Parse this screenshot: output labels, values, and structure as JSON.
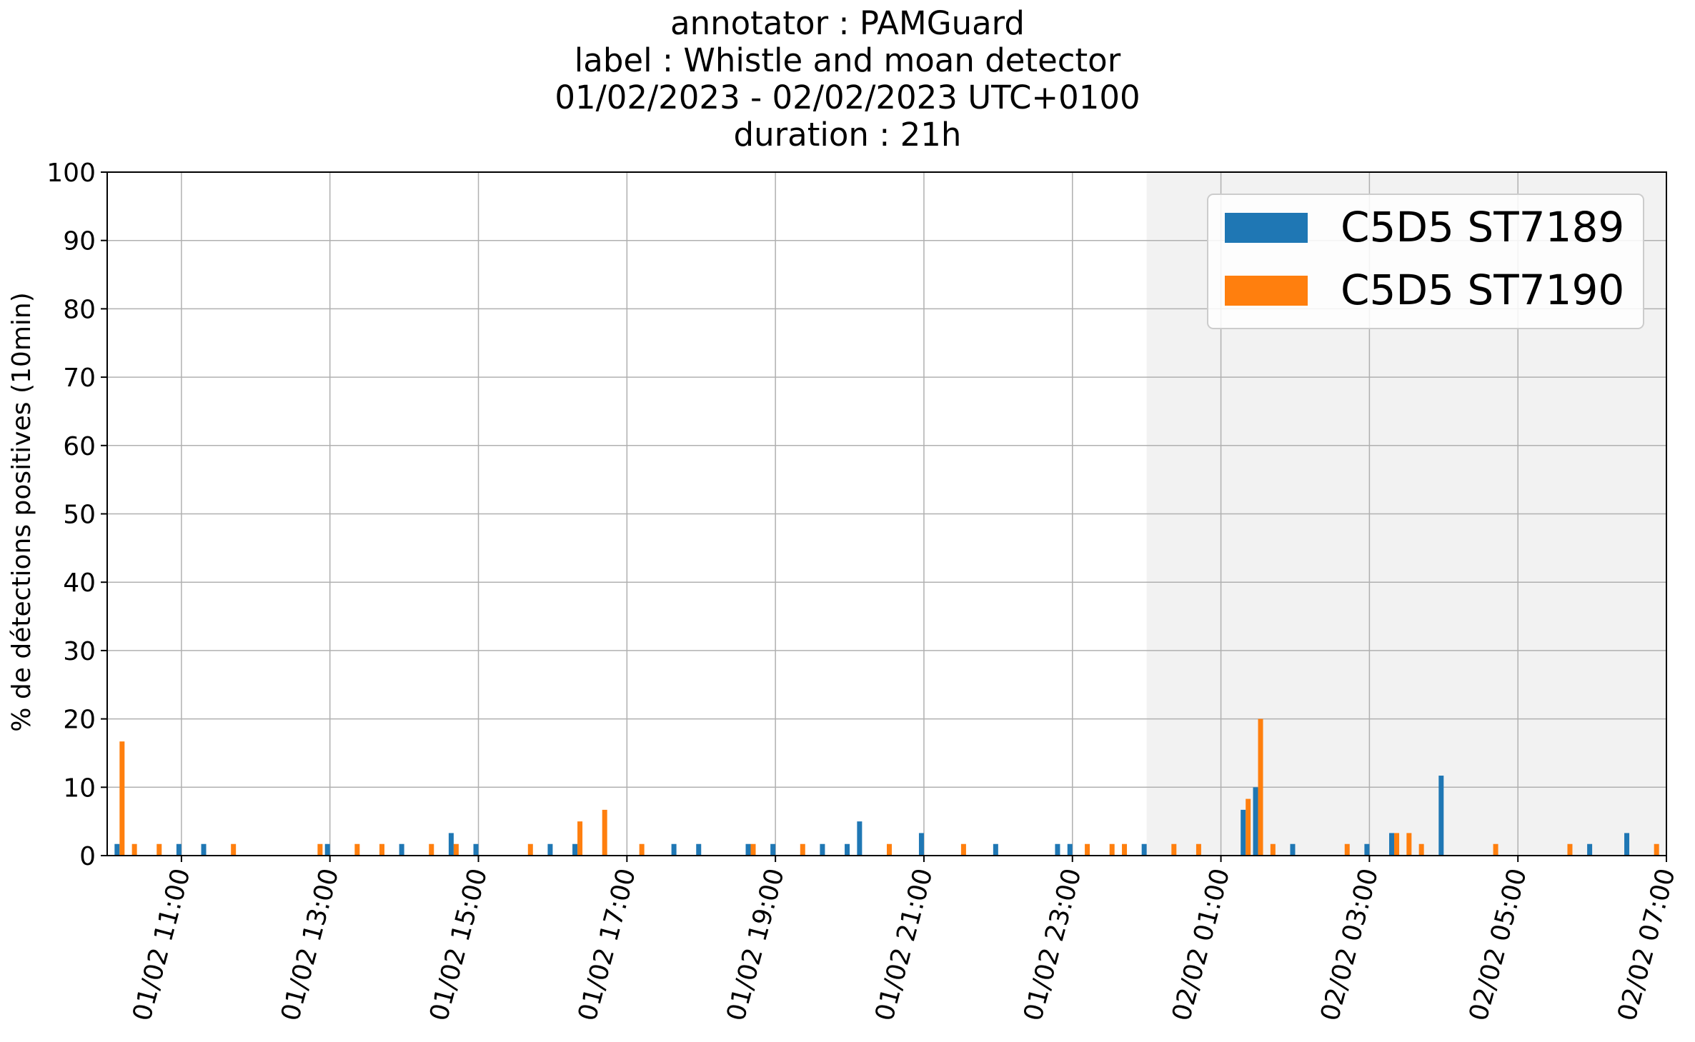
{
  "chart_data": {
    "type": "bar",
    "title_lines": [
      "annotator : PAMGuard",
      "label : Whistle and moan detector",
      "01/02/2023 - 02/02/2023 UTC+0100",
      "duration : 21h"
    ],
    "xlabel": "",
    "ylabel": "% de détections positives (10min)",
    "ylim": [
      0,
      100
    ],
    "yticks": [
      0,
      10,
      20,
      30,
      40,
      50,
      60,
      70,
      80,
      90,
      100
    ],
    "xlim": [
      "2023-02-01 10:00",
      "2023-02-02 07:00"
    ],
    "xticks": [
      {
        "time": "2023-02-01 11:00",
        "label": "01/02 11:00"
      },
      {
        "time": "2023-02-01 13:00",
        "label": "01/02 13:00"
      },
      {
        "time": "2023-02-01 15:00",
        "label": "01/02 15:00"
      },
      {
        "time": "2023-02-01 17:00",
        "label": "01/02 17:00"
      },
      {
        "time": "2023-02-01 19:00",
        "label": "01/02 19:00"
      },
      {
        "time": "2023-02-01 21:00",
        "label": "01/02 21:00"
      },
      {
        "time": "2023-02-01 23:00",
        "label": "01/02 23:00"
      },
      {
        "time": "2023-02-02 01:00",
        "label": "02/02 01:00"
      },
      {
        "time": "2023-02-02 03:00",
        "label": "02/02 03:00"
      },
      {
        "time": "2023-02-02 05:00",
        "label": "02/02 05:00"
      },
      {
        "time": "2023-02-02 07:00",
        "label": "02/02 07:00"
      }
    ],
    "shaded_region": {
      "start": "2023-02-02 00:00",
      "end": "2023-02-02 07:00",
      "color": "#f2f2f2"
    },
    "grid": true,
    "legend_position": "top-right",
    "series": [
      {
        "name": "C5D5 ST7189",
        "color": "#1f77b4",
        "points": [
          {
            "time": "2023-02-01 10:10",
            "value": 1.7
          },
          {
            "time": "2023-02-01 11:00",
            "value": 1.7
          },
          {
            "time": "2023-02-01 11:20",
            "value": 1.7
          },
          {
            "time": "2023-02-01 13:00",
            "value": 1.7
          },
          {
            "time": "2023-02-01 14:00",
            "value": 1.7
          },
          {
            "time": "2023-02-01 14:40",
            "value": 3.3
          },
          {
            "time": "2023-02-01 15:00",
            "value": 1.7
          },
          {
            "time": "2023-02-01 16:00",
            "value": 1.7
          },
          {
            "time": "2023-02-01 16:20",
            "value": 1.7
          },
          {
            "time": "2023-02-01 17:40",
            "value": 1.7
          },
          {
            "time": "2023-02-01 18:00",
            "value": 1.7
          },
          {
            "time": "2023-02-01 18:40",
            "value": 1.7
          },
          {
            "time": "2023-02-01 19:00",
            "value": 1.7
          },
          {
            "time": "2023-02-01 19:40",
            "value": 1.7
          },
          {
            "time": "2023-02-01 20:00",
            "value": 1.7
          },
          {
            "time": "2023-02-01 20:10",
            "value": 5.0
          },
          {
            "time": "2023-02-01 21:00",
            "value": 3.3
          },
          {
            "time": "2023-02-01 22:00",
            "value": 1.7
          },
          {
            "time": "2023-02-01 22:50",
            "value": 1.7
          },
          {
            "time": "2023-02-01 23:00",
            "value": 1.7
          },
          {
            "time": "2023-02-02 00:00",
            "value": 1.7
          },
          {
            "time": "2023-02-02 01:20",
            "value": 6.7
          },
          {
            "time": "2023-02-02 01:30",
            "value": 10.0
          },
          {
            "time": "2023-02-02 02:00",
            "value": 1.7
          },
          {
            "time": "2023-02-02 03:00",
            "value": 1.7
          },
          {
            "time": "2023-02-02 03:20",
            "value": 3.3
          },
          {
            "time": "2023-02-02 04:00",
            "value": 11.7
          },
          {
            "time": "2023-02-02 06:00",
            "value": 1.7
          },
          {
            "time": "2023-02-02 06:30",
            "value": 3.3
          }
        ]
      },
      {
        "name": "C5D5 ST7190",
        "color": "#ff7f0e",
        "points": [
          {
            "time": "2023-02-01 10:10",
            "value": 16.7
          },
          {
            "time": "2023-02-01 10:20",
            "value": 1.7
          },
          {
            "time": "2023-02-01 10:40",
            "value": 1.7
          },
          {
            "time": "2023-02-01 11:40",
            "value": 1.7
          },
          {
            "time": "2023-02-01 12:50",
            "value": 1.7
          },
          {
            "time": "2023-02-01 13:20",
            "value": 1.7
          },
          {
            "time": "2023-02-01 13:40",
            "value": 1.7
          },
          {
            "time": "2023-02-01 14:20",
            "value": 1.7
          },
          {
            "time": "2023-02-01 14:40",
            "value": 1.7
          },
          {
            "time": "2023-02-01 15:40",
            "value": 1.7
          },
          {
            "time": "2023-02-01 16:20",
            "value": 5.0
          },
          {
            "time": "2023-02-01 16:40",
            "value": 6.7
          },
          {
            "time": "2023-02-01 17:10",
            "value": 1.7
          },
          {
            "time": "2023-02-01 18:40",
            "value": 1.7
          },
          {
            "time": "2023-02-01 19:20",
            "value": 1.7
          },
          {
            "time": "2023-02-01 20:30",
            "value": 1.7
          },
          {
            "time": "2023-02-01 21:30",
            "value": 1.7
          },
          {
            "time": "2023-02-01 23:10",
            "value": 1.7
          },
          {
            "time": "2023-02-01 23:30",
            "value": 1.7
          },
          {
            "time": "2023-02-01 23:40",
            "value": 1.7
          },
          {
            "time": "2023-02-02 00:20",
            "value": 1.7
          },
          {
            "time": "2023-02-02 00:40",
            "value": 1.7
          },
          {
            "time": "2023-02-02 01:20",
            "value": 8.3
          },
          {
            "time": "2023-02-02 01:30",
            "value": 20.0
          },
          {
            "time": "2023-02-02 01:40",
            "value": 1.7
          },
          {
            "time": "2023-02-02 02:40",
            "value": 1.7
          },
          {
            "time": "2023-02-02 03:20",
            "value": 3.3
          },
          {
            "time": "2023-02-02 03:30",
            "value": 3.3
          },
          {
            "time": "2023-02-02 03:40",
            "value": 1.7
          },
          {
            "time": "2023-02-02 04:40",
            "value": 1.7
          },
          {
            "time": "2023-02-02 05:40",
            "value": 1.7
          },
          {
            "time": "2023-02-02 06:50",
            "value": 1.7
          }
        ]
      }
    ]
  }
}
